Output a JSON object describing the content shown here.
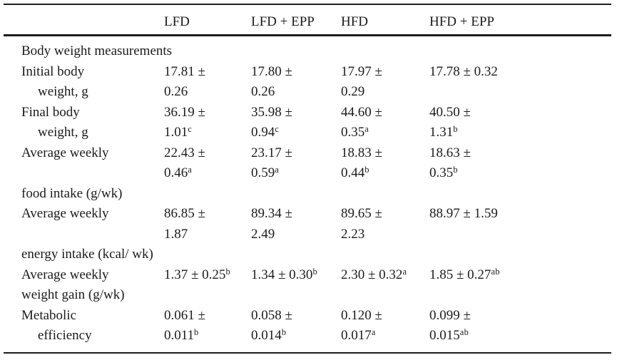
{
  "style": {
    "background": "#ffffff",
    "text_color": "#1b1b1b",
    "rule_color": "#1c1c1c"
  },
  "table": {
    "superscript_marker": "^",
    "column_headers": [
      "",
      "LFD",
      "LFD + EPP",
      "HFD",
      "HFD + EPP"
    ],
    "rows": [
      {
        "type": "section",
        "label_lines": [
          {
            "text": "Body weight measurements",
            "indent": false
          }
        ],
        "cells": []
      },
      {
        "label_lines": [
          {
            "text": "Initial body",
            "indent": false
          },
          {
            "text": "weight, g",
            "indent": true
          }
        ],
        "cells": [
          [
            "17.81 ±",
            "0.26"
          ],
          [
            "17.80 ±",
            "0.26"
          ],
          [
            "17.97 ±",
            "0.29"
          ],
          [
            "17.78 ± 0.32"
          ]
        ]
      },
      {
        "label_lines": [
          {
            "text": "Final body",
            "indent": false
          },
          {
            "text": "weight, g",
            "indent": true
          }
        ],
        "cells": [
          [
            "36.19 ±",
            "1.01^c"
          ],
          [
            "35.98 ±",
            "0.94^c"
          ],
          [
            "44.60 ±",
            "0.35^a"
          ],
          [
            "40.50 ±",
            "1.31^b"
          ]
        ]
      },
      {
        "label_lines": [
          {
            "text": "Average weekly",
            "indent": false
          },
          {
            "text": "",
            "indent": false
          },
          {
            "text": "food intake (g/wk)",
            "indent": false
          }
        ],
        "cells": [
          [
            "22.43 ±",
            "0.46^a"
          ],
          [
            "23.17 ±",
            "0.59^a"
          ],
          [
            "18.83 ±",
            "0.44^b"
          ],
          [
            "18.63 ±",
            "0.35^b"
          ]
        ]
      },
      {
        "label_lines": [
          {
            "text": "Average weekly",
            "indent": false
          },
          {
            "text": "",
            "indent": false
          },
          {
            "text": "energy intake (kcal/ wk)",
            "indent": false
          }
        ],
        "cells": [
          [
            "86.85 ±",
            "1.87"
          ],
          [
            "89.34 ±",
            "2.49"
          ],
          [
            "89.65 ±",
            "2.23"
          ],
          [
            "88.97 ± 1.59"
          ]
        ]
      },
      {
        "label_lines": [
          {
            "text": "Average weekly",
            "indent": false
          },
          {
            "text": "weight gain (g/wk)",
            "indent": false
          }
        ],
        "cells": [
          [
            "1.37 ± 0.25^b"
          ],
          [
            "1.34 ± 0.30^b"
          ],
          [
            "2.30 ± 0.32^a"
          ],
          [
            "1.85 ± 0.27^ab"
          ]
        ]
      },
      {
        "label_lines": [
          {
            "text": "Metabolic",
            "indent": false
          },
          {
            "text": "efficiency",
            "indent": true
          }
        ],
        "cells": [
          [
            "0.061 ±",
            "0.011^b"
          ],
          [
            "0.058 ±",
            "0.014^b"
          ],
          [
            "0.120 ±",
            "0.017^a"
          ],
          [
            "0.099 ±",
            "0.015^ab"
          ]
        ]
      }
    ]
  }
}
